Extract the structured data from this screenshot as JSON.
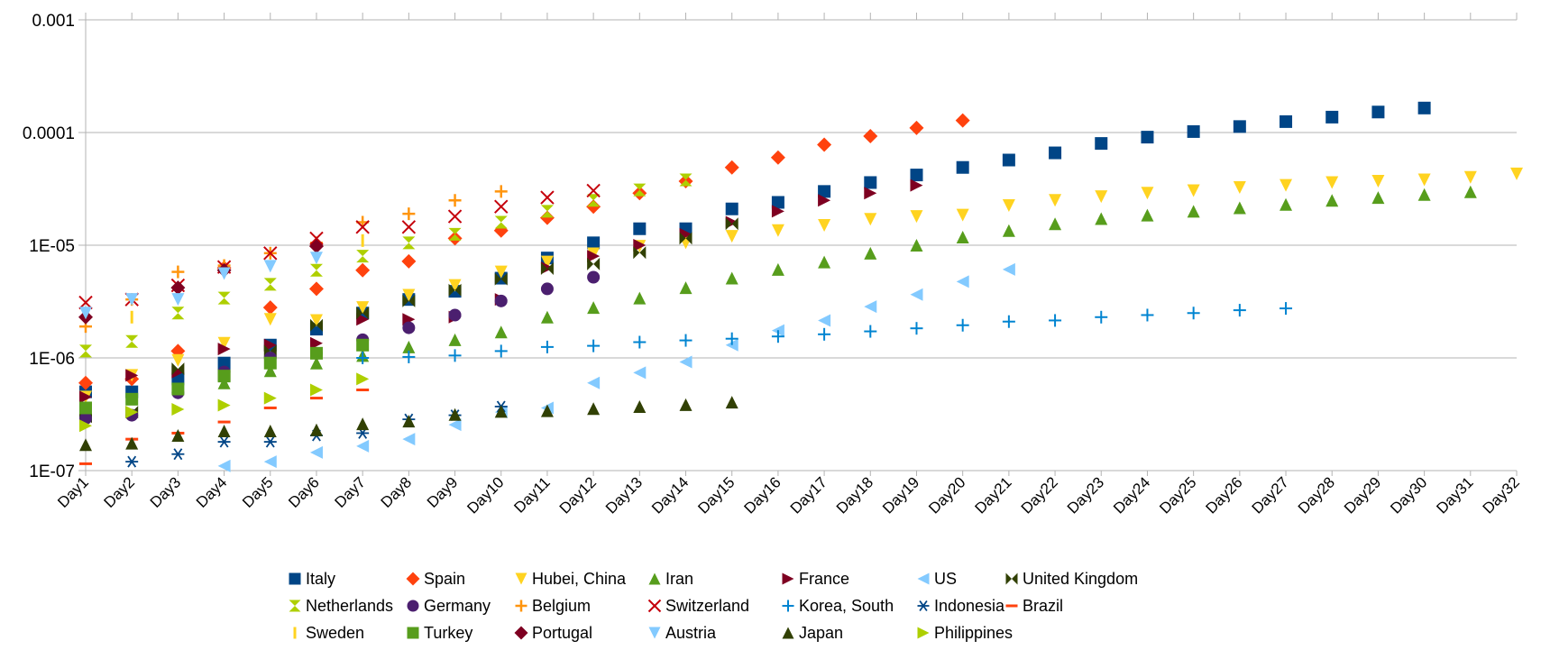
{
  "chart_data": {
    "type": "scatter",
    "title": "",
    "xlabel": "",
    "ylabel": "",
    "yscale": "log",
    "ylim": [
      1e-07,
      0.001
    ],
    "y_ticks": [
      "0.001",
      "0.0001",
      "1E-05",
      "1E-06",
      "1E-07"
    ],
    "y_tick_values": [
      0.001,
      0.0001,
      1e-05,
      1e-06,
      1e-07
    ],
    "grid": "horizontal",
    "legend_position": "bottom",
    "categories": [
      "Day1",
      "Day2",
      "Day3",
      "Day4",
      "Day5",
      "Day6",
      "Day7",
      "Day8",
      "Day9",
      "Day10",
      "Day11",
      "Day12",
      "Day13",
      "Day14",
      "Day15",
      "Day16",
      "Day17",
      "Day18",
      "Day19",
      "Day20",
      "Day21",
      "Day22",
      "Day23",
      "Day24",
      "Day25",
      "Day26",
      "Day27",
      "Day28",
      "Day29",
      "Day30",
      "Day31",
      "Day32"
    ],
    "series": [
      {
        "name": "Italy",
        "color": "#004586",
        "marker": "square",
        "values": [
          5e-07,
          5e-07,
          6.5e-07,
          9e-07,
          1.3e-06,
          1.8e-06,
          2.5e-06,
          3.3e-06,
          3.9e-06,
          5.1e-06,
          7.7e-06,
          1.05e-05,
          1.4e-05,
          1.4e-05,
          2.1e-05,
          2.4e-05,
          3e-05,
          3.6e-05,
          4.2e-05,
          4.9e-05,
          5.7e-05,
          6.6e-05,
          8e-05,
          9.1e-05,
          0.000102,
          0.000113,
          0.000125,
          0.000137,
          0.000152,
          0.000165
        ]
      },
      {
        "name": "Spain",
        "color": "#ff420e",
        "marker": "diamond",
        "values": [
          6e-07,
          6.5e-07,
          1.15e-06,
          6.3e-06,
          2.8e-06,
          4.1e-06,
          6e-06,
          7.2e-06,
          1.15e-05,
          1.35e-05,
          1.75e-05,
          2.2e-05,
          2.9e-05,
          3.7e-05,
          4.9e-05,
          6e-05,
          7.8e-05,
          9.3e-05,
          0.00011,
          0.000128
        ]
      },
      {
        "name": "Hubei, China",
        "color": "#ffd320",
        "marker": "triangle-down",
        "values": [
          4.5e-07,
          7e-07,
          9.5e-07,
          1.35e-06,
          2.2e-06,
          2.15e-06,
          2.8e-06,
          3.6e-06,
          4.4e-06,
          5.8e-06,
          7.1e-06,
          8.4e-06,
          9.8e-06,
          1.05e-05,
          1.2e-05,
          1.35e-05,
          1.5e-05,
          1.7e-05,
          1.8e-05,
          1.85e-05,
          2.25e-05,
          2.5e-05,
          2.7e-05,
          2.9e-05,
          3.05e-05,
          3.25e-05,
          3.4e-05,
          3.6e-05,
          3.7e-05,
          3.8e-05,
          4e-05,
          4.3e-05
        ]
      },
      {
        "name": "Iran",
        "color": "#579d1c",
        "marker": "triangle-up",
        "values": [
          null,
          null,
          null,
          6e-07,
          7.7e-07,
          9e-07,
          1.05e-06,
          1.25e-06,
          1.45e-06,
          1.7e-06,
          2.3e-06,
          2.8e-06,
          3.4e-06,
          4.2e-06,
          5.1e-06,
          6.1e-06,
          7.1e-06,
          8.5e-06,
          1e-05,
          1.18e-05,
          1.35e-05,
          1.55e-05,
          1.72e-05,
          1.85e-05,
          2e-05,
          2.15e-05,
          2.3e-05,
          2.5e-05,
          2.65e-05,
          2.82e-05,
          2.98e-05
        ]
      },
      {
        "name": "France",
        "color": "#7e0021",
        "marker": "triangle-right",
        "values": [
          4.5e-07,
          7e-07,
          7.5e-07,
          1.2e-06,
          1.3e-06,
          1.35e-06,
          2.2e-06,
          2.2e-06,
          2.3e-06,
          3.3e-06,
          6.3e-06,
          8e-06,
          1e-05,
          1.25e-05,
          1.6e-05,
          2e-05,
          2.5e-05,
          2.9e-05,
          3.4e-05
        ]
      },
      {
        "name": "US",
        "color": "#83caff",
        "marker": "triangle-left",
        "values": [
          null,
          null,
          null,
          1.1e-07,
          1.2e-07,
          1.45e-07,
          1.65e-07,
          1.9e-07,
          2.55e-07,
          3.3e-07,
          3.6e-07,
          6e-07,
          7.4e-07,
          9.2e-07,
          1.3e-06,
          1.75e-06,
          2.15e-06,
          2.85e-06,
          3.65e-06,
          4.75e-06,
          6.1e-06
        ]
      },
      {
        "name": "United Kingdom",
        "color": "#314004",
        "marker": "bowtie",
        "values": [
          3e-07,
          3.3e-07,
          8e-07,
          7e-07,
          1.15e-06,
          1.95e-06,
          2.5e-06,
          3.2e-06,
          4e-06,
          5e-06,
          6.2e-06,
          6.8e-06,
          8.6e-06,
          1.15e-05,
          1.55e-05
        ]
      },
      {
        "name": "Netherlands",
        "color": "#aecf00",
        "marker": "hourglass",
        "values": [
          1.15e-06,
          1.4e-06,
          2.5e-06,
          3.4e-06,
          4.5e-06,
          6e-06,
          8e-06,
          1.05e-05,
          1.25e-05,
          1.6e-05,
          2e-05,
          2.5e-05,
          3.1e-05,
          3.8e-05
        ]
      },
      {
        "name": "Germany",
        "color": "#4b1f6f",
        "marker": "circle",
        "values": [
          2.9e-07,
          3.1e-07,
          4.9e-07,
          7.5e-07,
          1e-06,
          1.1e-06,
          1.45e-06,
          1.85e-06,
          2.4e-06,
          3.2e-06,
          4.1e-06,
          5.2e-06
        ]
      },
      {
        "name": "Belgium",
        "color": "#ff950e",
        "marker": "plus-bold",
        "values": [
          1.9e-06,
          3.3e-06,
          5.8e-06,
          6.6e-06,
          8.5e-06,
          1.05e-05,
          1.6e-05,
          1.9e-05,
          2.5e-05,
          3e-05
        ]
      },
      {
        "name": "Switzerland",
        "color": "#c5000b",
        "marker": "x",
        "values": [
          3.1e-06,
          3.3e-06,
          4.4e-06,
          6.4e-06,
          8.5e-06,
          1.15e-05,
          1.45e-05,
          1.45e-05,
          1.8e-05,
          2.2e-05,
          2.65e-05,
          3.05e-05
        ]
      },
      {
        "name": "Korea, South",
        "color": "#0084d1",
        "marker": "plus",
        "values": [
          null,
          null,
          null,
          null,
          null,
          null,
          1e-06,
          1.02e-06,
          1.05e-06,
          1.15e-06,
          1.25e-06,
          1.28e-06,
          1.38e-06,
          1.43e-06,
          1.48e-06,
          1.55e-06,
          1.62e-06,
          1.72e-06,
          1.83e-06,
          1.95e-06,
          2.1e-06,
          2.15e-06,
          2.3e-06,
          2.4e-06,
          2.5e-06,
          2.65e-06,
          2.75e-06
        ]
      },
      {
        "name": "Indonesia",
        "color": "#004586",
        "marker": "asterisk",
        "values": [
          null,
          1.2e-07,
          1.4e-07,
          1.8e-07,
          1.8e-07,
          2.05e-07,
          2.15e-07,
          2.85e-07,
          3.1e-07,
          3.7e-07
        ]
      },
      {
        "name": "Brazil",
        "color": "#ff420e",
        "marker": "dash",
        "values": [
          1.15e-07,
          1.9e-07,
          2.15e-07,
          2.7e-07,
          3.6e-07,
          4.4e-07,
          5.2e-07
        ]
      },
      {
        "name": "Sweden",
        "color": "#ffd320",
        "marker": "vbar",
        "values": [
          null,
          2.3e-06,
          null,
          null,
          null,
          null,
          1.1e-05
        ]
      },
      {
        "name": "Turkey",
        "color": "#579d1c",
        "marker": "square",
        "values": [
          3.6e-07,
          4.3e-07,
          5.3e-07,
          6.9e-07,
          9e-07,
          1.1e-06,
          1.3e-06
        ]
      },
      {
        "name": "Portugal",
        "color": "#7e0021",
        "marker": "diamond",
        "values": [
          2.3e-06,
          null,
          4.2e-06,
          6e-06,
          null,
          9.8e-06
        ]
      },
      {
        "name": "Austria",
        "color": "#83caff",
        "marker": "triangle-down",
        "values": [
          2.5e-06,
          3.3e-06,
          3.3e-06,
          5.6e-06,
          6.5e-06,
          7.7e-06
        ]
      },
      {
        "name": "Japan",
        "color": "#314004",
        "marker": "triangle-up",
        "values": [
          1.7e-07,
          1.75e-07,
          2.05e-07,
          2.25e-07,
          2.25e-07,
          2.3e-07,
          2.6e-07,
          2.75e-07,
          3.15e-07,
          3.35e-07,
          3.4e-07,
          3.55e-07,
          3.7e-07,
          3.85e-07,
          4.05e-07
        ]
      },
      {
        "name": "Philippines",
        "color": "#aecf00",
        "marker": "triangle-right",
        "values": [
          2.5e-07,
          3.3e-07,
          3.5e-07,
          3.8e-07,
          4.4e-07,
          5.2e-07,
          6.5e-07
        ]
      }
    ]
  }
}
